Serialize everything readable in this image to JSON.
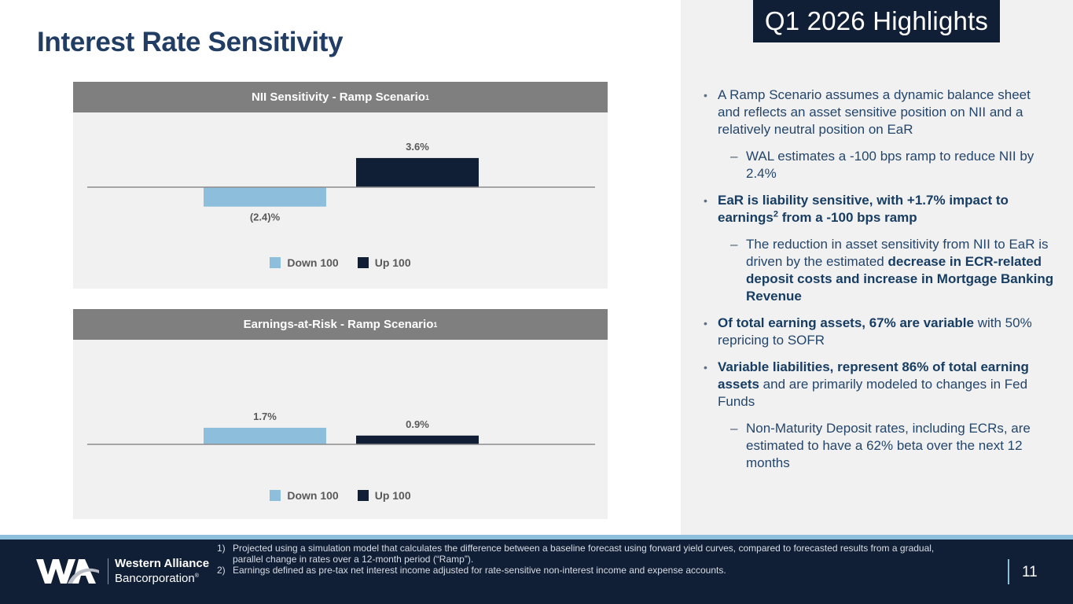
{
  "page": {
    "title": "Interest Rate Sensitivity",
    "page_number": "11"
  },
  "highlights": {
    "badge": "Q1 2026 Highlights",
    "items": [
      {
        "level": 1,
        "parts": [
          {
            "text": "A Ramp Scenario assumes a dynamic balance sheet and reflects an asset sensitive position on NII and a relatively neutral position on EaR",
            "bold": false
          }
        ]
      },
      {
        "level": 2,
        "parts": [
          {
            "text": "WAL estimates a -100 bps ramp to reduce NII by 2.4%",
            "bold": false
          }
        ]
      },
      {
        "level": 1,
        "parts": [
          {
            "text": "EaR is liability sensitive, with +1.7% impact to earnings",
            "bold": true
          },
          {
            "text": "2",
            "bold": true,
            "sup": true
          },
          {
            "text": "  from a -100 bps ramp",
            "bold": true
          }
        ]
      },
      {
        "level": 2,
        "parts": [
          {
            "text": "The reduction in asset sensitivity from NII to EaR is driven by the estimated ",
            "bold": false
          },
          {
            "text": "decrease in ECR-related deposit costs and increase in Mortgage Banking Revenue",
            "bold": true
          }
        ]
      },
      {
        "level": 1,
        "parts": [
          {
            "text": "Of total earning assets, 67% are variable",
            "bold": true
          },
          {
            "text": " with 50% repricing to SOFR",
            "bold": false
          }
        ]
      },
      {
        "level": 1,
        "parts": [
          {
            "text": "Variable liabilities, represent 86% of total earning assets",
            "bold": true
          },
          {
            "text": " and are primarily modeled to changes in Fed Funds",
            "bold": false
          }
        ]
      },
      {
        "level": 2,
        "parts": [
          {
            "text": "Non-Maturity Deposit rates, including ECRs, are estimated to have a 62% beta over the next 12 months",
            "bold": false
          }
        ]
      }
    ]
  },
  "colors": {
    "down": "#8dbfdc",
    "up": "#101e36",
    "baseline": "#8c8c8c",
    "label": "#595959"
  },
  "chart_data": [
    {
      "type": "bar",
      "title": "NII Sensitivity - Ramp Scenario",
      "title_sup": "1",
      "categories": [
        "Down 100",
        "Up 100"
      ],
      "values": [
        -2.4,
        3.6
      ],
      "data_labels": [
        "(2.4)%",
        "3.6%"
      ],
      "unit": "%",
      "xlabel": "",
      "ylabel": "",
      "grid": false,
      "legend": {
        "position": "bottom",
        "entries": [
          "Down 100",
          "Up 100"
        ]
      }
    },
    {
      "type": "bar",
      "title": "Earnings-at-Risk - Ramp Scenario",
      "title_sup": "1",
      "categories": [
        "Down 100",
        "Up 100"
      ],
      "values": [
        1.7,
        0.9
      ],
      "data_labels": [
        "1.7%",
        "0.9%"
      ],
      "unit": "%",
      "xlabel": "",
      "ylabel": "",
      "grid": false,
      "legend": {
        "position": "bottom",
        "entries": [
          "Down 100",
          "Up 100"
        ]
      }
    }
  ],
  "footer": {
    "logo_mark": "WA",
    "logo_name": "Western Alliance",
    "logo_sub": "Bancorporation",
    "logo_reg": "®",
    "footnotes": [
      {
        "num": "1)",
        "text": "Projected using a simulation model that calculates the difference between a baseline forecast using forward yield curves, compared to forecasted results from a gradual, parallel change in rates over a 12-month period (“Ramp”)."
      },
      {
        "num": "2)",
        "text": "Earnings defined as pre-tax net interest income adjusted for rate-sensitive non-interest income and expense accounts."
      }
    ]
  }
}
